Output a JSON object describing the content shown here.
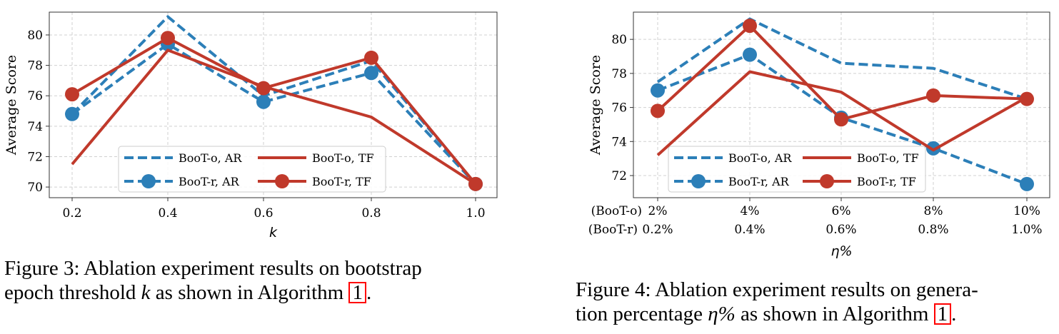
{
  "colors": {
    "blue": "#2c7fb8",
    "red": "#c0392b"
  },
  "chart_data": [
    {
      "type": "line",
      "xlabel": "k",
      "ylabel": "Average Score",
      "categories": [
        "0.2",
        "0.4",
        "0.6",
        "0.8",
        "1.0"
      ],
      "yticks": [
        70,
        72,
        74,
        76,
        78,
        80
      ],
      "ylim": [
        69.3,
        81.5
      ],
      "grid": true,
      "legend": "lower-center",
      "series": [
        {
          "name": "BooT-o, AR",
          "style": "dashed",
          "color": "blue",
          "values": [
            74.8,
            81.2,
            76.0,
            78.3,
            70.2
          ]
        },
        {
          "name": "BooT-o, TF",
          "style": "solid",
          "color": "red",
          "values": [
            71.5,
            79.0,
            76.6,
            74.6,
            70.2
          ]
        },
        {
          "name": "BooT-r, AR",
          "style": "dashed-marker",
          "color": "blue",
          "values": [
            74.8,
            79.4,
            75.6,
            77.5,
            70.2
          ]
        },
        {
          "name": "BooT-r, TF",
          "style": "solid-marker",
          "color": "red",
          "values": [
            76.1,
            79.8,
            76.5,
            78.5,
            70.2
          ]
        }
      ]
    },
    {
      "type": "line",
      "xlabel": "η%",
      "ylabel": "Average Score",
      "categories": [
        "2%",
        "4%",
        "6%",
        "8%",
        "10%"
      ],
      "categories2": [
        "0.2%",
        "0.4%",
        "0.6%",
        "0.8%",
        "1.0%"
      ],
      "group_labels": [
        "(BooT-o)",
        "(BooT-r)"
      ],
      "yticks": [
        72,
        74,
        76,
        78,
        80
      ],
      "ylim": [
        70.7,
        81.6
      ],
      "grid": true,
      "legend": "lower-center",
      "series": [
        {
          "name": "BooT-o, AR",
          "style": "dashed",
          "color": "blue",
          "values": [
            77.5,
            81.2,
            78.6,
            78.3,
            76.5
          ]
        },
        {
          "name": "BooT-o, TF",
          "style": "solid",
          "color": "red",
          "values": [
            73.2,
            78.1,
            76.9,
            73.5,
            76.6
          ]
        },
        {
          "name": "BooT-r, AR",
          "style": "dashed-marker",
          "color": "blue",
          "values": [
            77.0,
            79.1,
            75.4,
            73.6,
            71.5
          ]
        },
        {
          "name": "BooT-r, TF",
          "style": "solid-marker",
          "color": "red",
          "values": [
            75.8,
            80.8,
            75.3,
            76.7,
            76.5
          ]
        }
      ]
    }
  ],
  "captions": [
    {
      "prefix": "Figure 3: Ablation experiment results on bootstrap",
      "line2_start": "epoch threshold ",
      "symbol": "k",
      "line2_mid": " as shown in Algorithm ",
      "ref": "1",
      "end": "."
    },
    {
      "prefix": "Figure 4: Ablation experiment results on genera-",
      "line2_start": "tion percentage ",
      "symbol": "η%",
      "line2_mid": " as shown in Algorithm ",
      "ref": "1",
      "end": "."
    }
  ]
}
